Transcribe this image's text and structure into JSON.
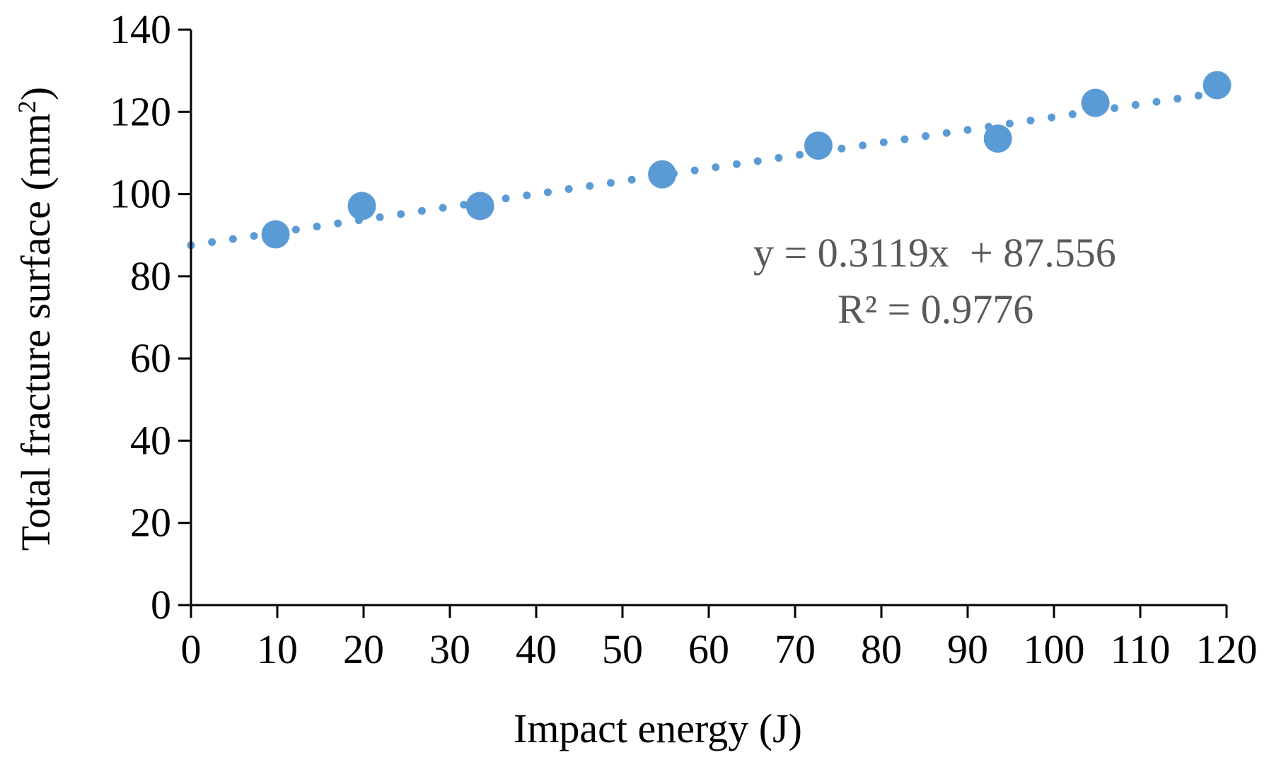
{
  "chart_data": {
    "type": "scatter",
    "title": "",
    "xlabel": "Impact energy (J)",
    "ylabel_main": "Total fracture surface (mm",
    "ylabel_sup": "2",
    "ylabel_close": ")",
    "xlim": [
      0,
      120
    ],
    "ylim": [
      0,
      140
    ],
    "xticks": [
      0,
      10,
      20,
      30,
      40,
      50,
      60,
      70,
      80,
      90,
      100,
      110,
      120
    ],
    "yticks": [
      0,
      20,
      40,
      60,
      80,
      100,
      120,
      140
    ],
    "grid": false,
    "legend": "none",
    "series": [
      {
        "name": "Total fracture surface",
        "color": "#5b9bd5",
        "x": [
          9.8,
          19.8,
          33.5,
          54.6,
          72.7,
          93.5,
          104.8,
          118.9
        ],
        "y": [
          90.2,
          97.1,
          97.1,
          104.8,
          111.8,
          113.5,
          122.2,
          126.5
        ]
      }
    ],
    "trendline": {
      "type": "linear",
      "style": "dotted",
      "slope": 0.3119,
      "intercept": 87.556,
      "x_range": [
        0,
        119
      ],
      "color": "#5b9bd5"
    },
    "annotations": {
      "equation": "y = 0.3119x  + 87.556",
      "r_squared": "R² = 0.9776"
    }
  }
}
